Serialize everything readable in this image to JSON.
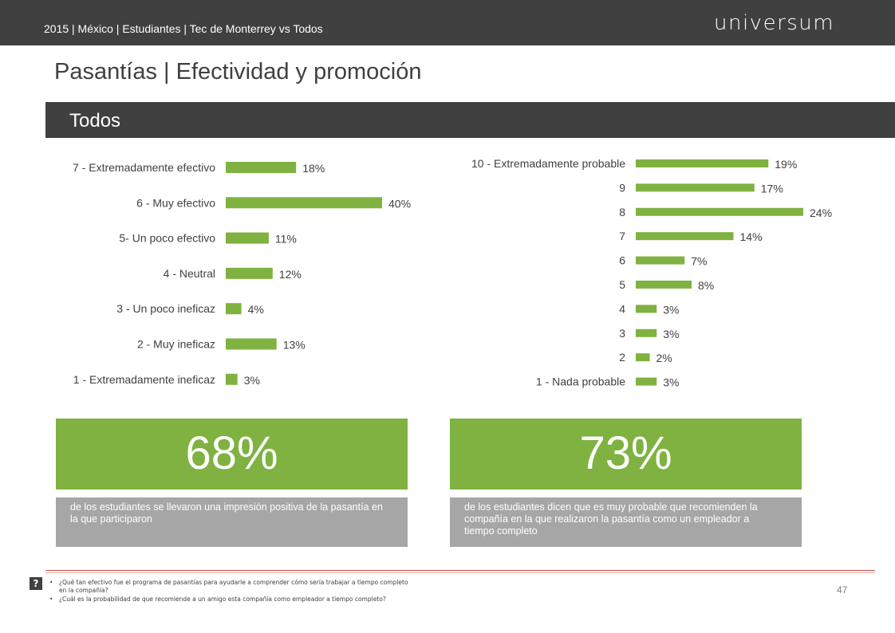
{
  "header": {
    "breadcrumb": "2015 | México | Estudiantes | Tec de Monterrey vs Todos",
    "logo_text": "universum"
  },
  "page_title": "Pasantías | Efectividad y promoción",
  "section_label": "Todos",
  "colors": {
    "bar": "#7fb241",
    "dark_bar": "#404040",
    "gray_box": "#a6a6a6",
    "rule": "#c0504d"
  },
  "chart_data": [
    {
      "type": "bar",
      "orientation": "horizontal",
      "categories": [
        "7 - Extremadamente efectivo",
        "6 - Muy efectivo",
        "5- Un poco efectivo",
        "4 - Neutral",
        "3 - Un poco ineficaz",
        "2 - Muy ineficaz",
        "1 - Extremadamente ineficaz"
      ],
      "values": [
        18,
        40,
        11,
        12,
        4,
        13,
        3
      ],
      "data_labels": [
        "18%",
        "40%",
        "11%",
        "12%",
        "4%",
        "13%",
        "3%"
      ],
      "unit": "%",
      "xlim": [
        0,
        40
      ],
      "grid": false
    },
    {
      "type": "bar",
      "orientation": "horizontal",
      "categories": [
        "10 - Extremadamente probable",
        "9",
        "8",
        "7",
        "6",
        "5",
        "4",
        "3",
        "2",
        "1 - Nada probable"
      ],
      "values": [
        19,
        17,
        24,
        14,
        7,
        8,
        3,
        3,
        2,
        3
      ],
      "data_labels": [
        "19%",
        "17%",
        "24%",
        "14%",
        "7%",
        "8%",
        "3%",
        "3%",
        "2%",
        "3%"
      ],
      "unit": "%",
      "xlim": [
        0,
        24
      ],
      "grid": false
    }
  ],
  "kpis": [
    {
      "value": "68%",
      "description": "de los estudiantes se llevaron una impresión positiva de la pasantía en la que participaron"
    },
    {
      "value": "73%",
      "description": "de los estudiantes dicen que es muy probable que recomienden la compañía en la que realizaron la pasantía como un empleador a tiempo completo"
    }
  ],
  "footer": {
    "question_icon": "?",
    "notes": [
      "¿Qué tan efectivo fue el programa de pasantías para ayudarle a comprender cómo sería trabajar a tiempo completo en la compañía?",
      "¿Cuál es la probabilidad de que recomiende a un amigo esta compañía como empleador a tiempo completo?"
    ],
    "bullet": "•",
    "page_number": "47"
  }
}
